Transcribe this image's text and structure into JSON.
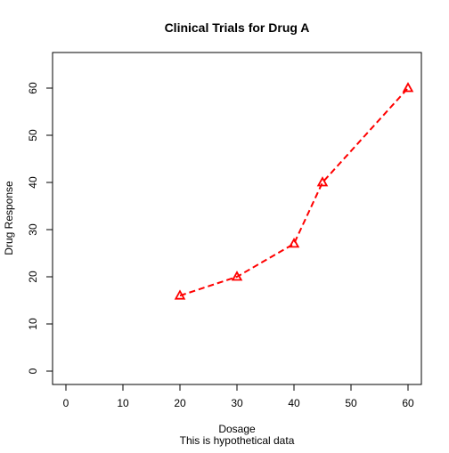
{
  "chart_data": {
    "type": "line",
    "title": "Clinical Trials for Drug A",
    "xlabel": "Dosage",
    "ylabel": "Drug Response",
    "subtitle": "This is hypothetical data",
    "xlim": [
      0,
      60
    ],
    "ylim": [
      0,
      60
    ],
    "xticks": [
      0,
      10,
      20,
      30,
      40,
      50,
      60
    ],
    "yticks": [
      0,
      10,
      20,
      30,
      40,
      50,
      60
    ],
    "grid": false,
    "series": [
      {
        "name": "Drug A",
        "color": "#ff0000",
        "line_style": "dashed",
        "marker": "triangle-open",
        "x": [
          20,
          30,
          40,
          45,
          60
        ],
        "y": [
          16,
          20,
          27,
          40,
          60
        ]
      }
    ]
  }
}
